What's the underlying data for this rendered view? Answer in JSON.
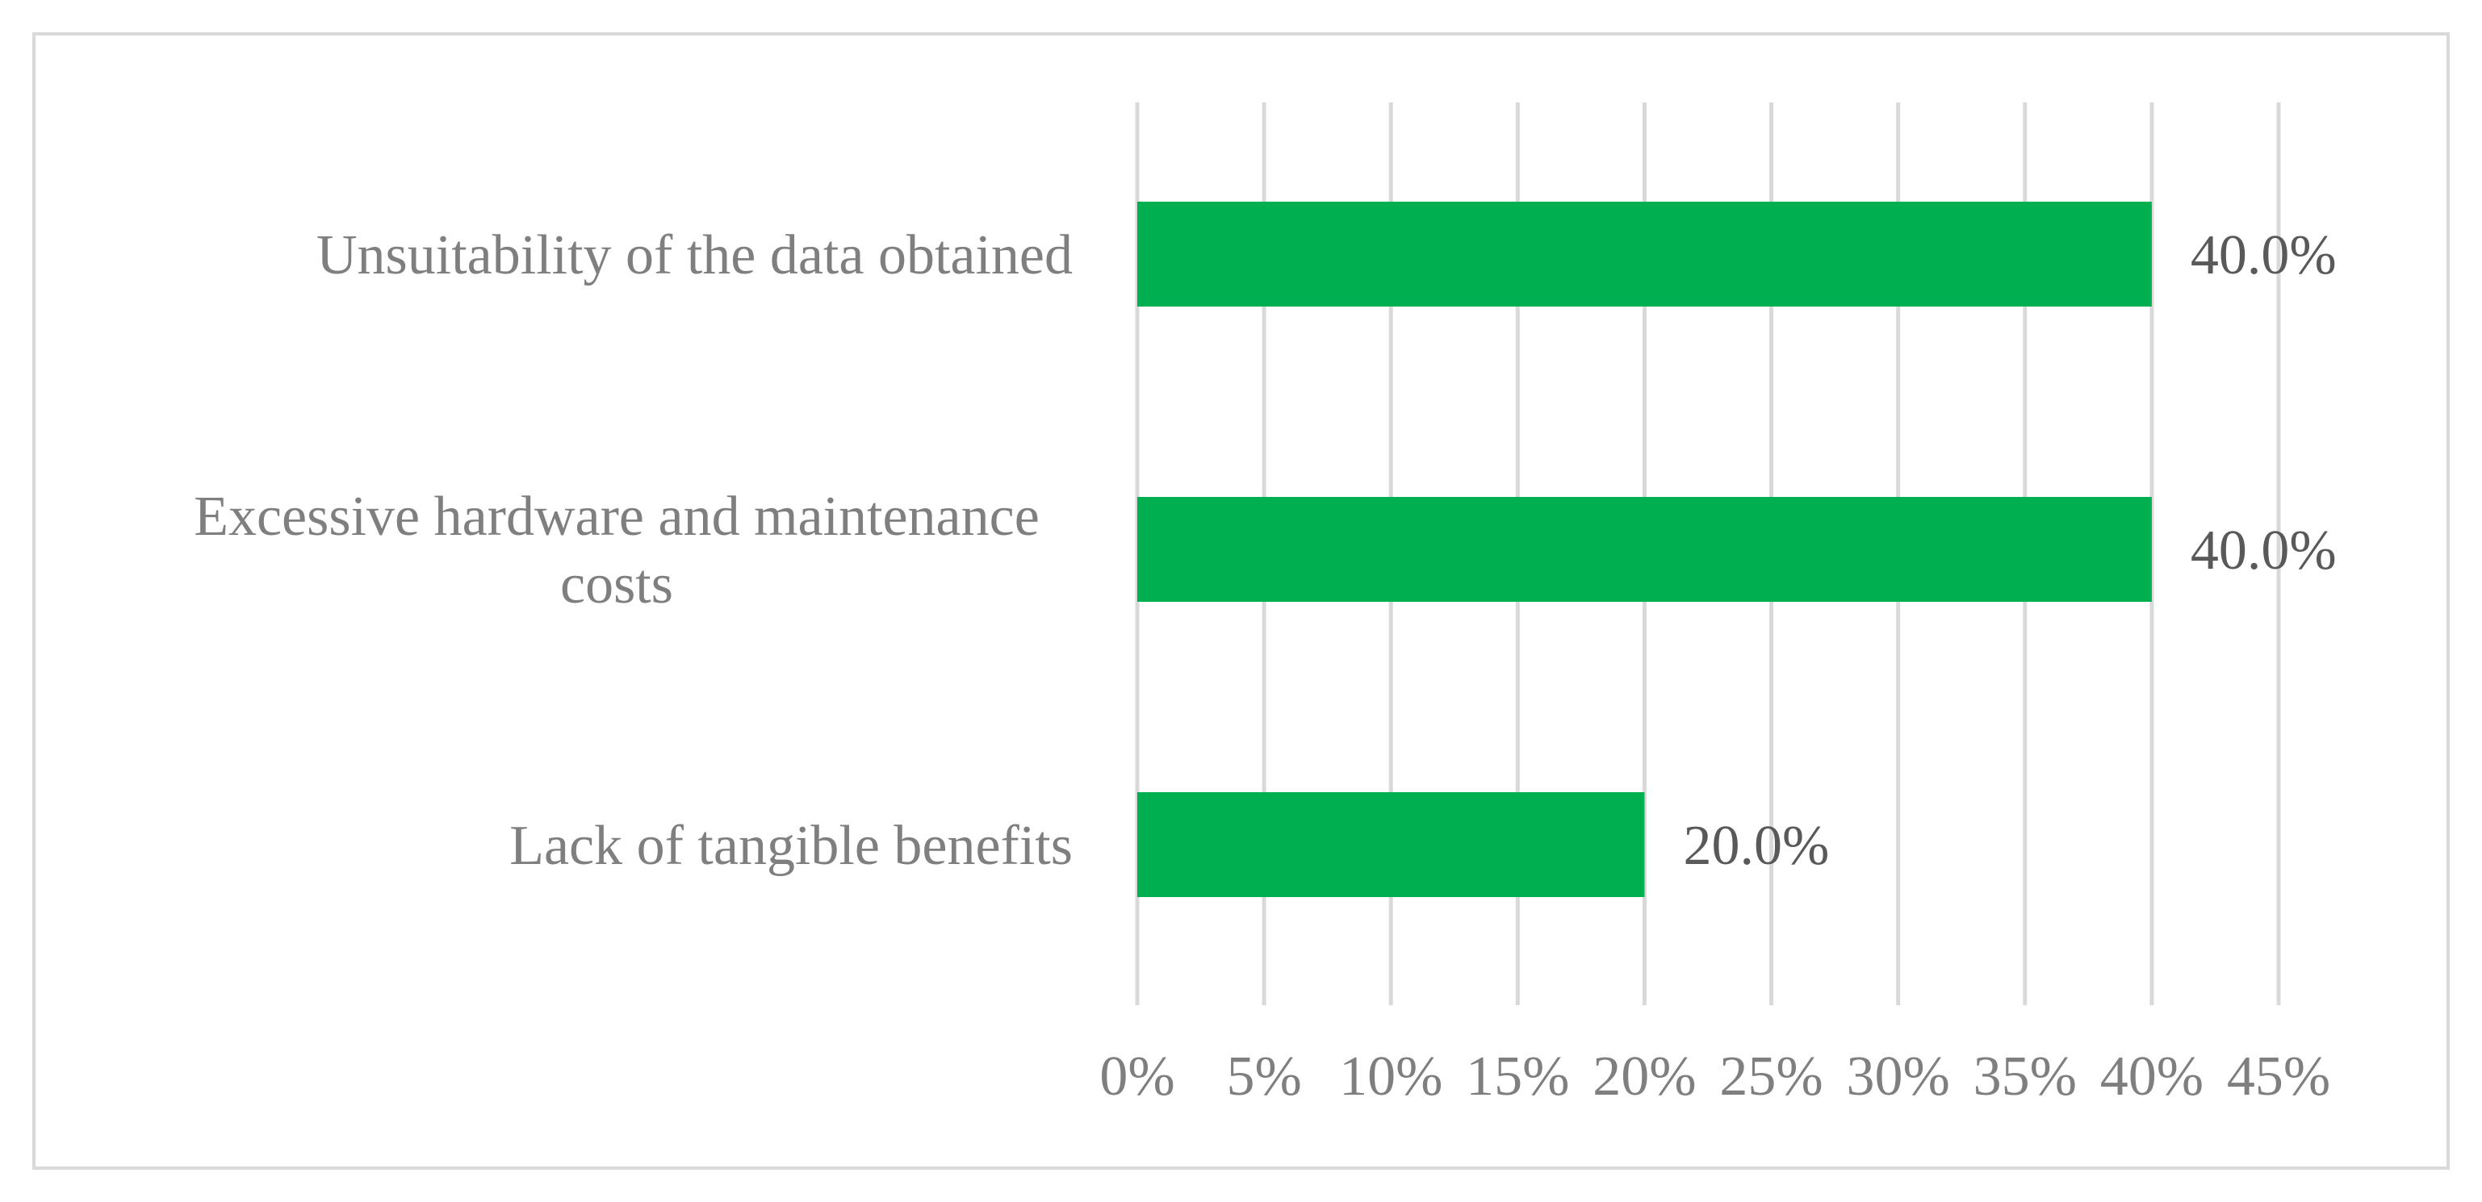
{
  "chart_data": {
    "type": "bar",
    "orientation": "horizontal",
    "categories": [
      "Unsuitability of the data obtained",
      "Excessive hardware and maintenance costs",
      "Lack of tangible benefits"
    ],
    "category_label_lines": [
      [
        "Unsuitability of the data obtained"
      ],
      [
        "Excessive hardware and maintenance",
        "costs"
      ],
      [
        "Lack of tangible benefits"
      ]
    ],
    "values": [
      40.0,
      40.0,
      20.0
    ],
    "data_labels": [
      "40.0%",
      "40.0%",
      "20.0%"
    ],
    "x_ticks": [
      0,
      5,
      10,
      15,
      20,
      25,
      30,
      35,
      40,
      45
    ],
    "x_tick_labels": [
      "0%",
      "5%",
      "10%",
      "15%",
      "20%",
      "25%",
      "30%",
      "35%",
      "40%",
      "45%"
    ],
    "xlim": [
      0,
      45
    ],
    "title": "",
    "xlabel": "",
    "ylabel": "",
    "grid": "vertical",
    "legend": "none",
    "colors": {
      "bar": "#00b050",
      "grid": "#d9d9d9",
      "axis_text": "#7f7f7f",
      "data_label_text": "#595959"
    }
  }
}
